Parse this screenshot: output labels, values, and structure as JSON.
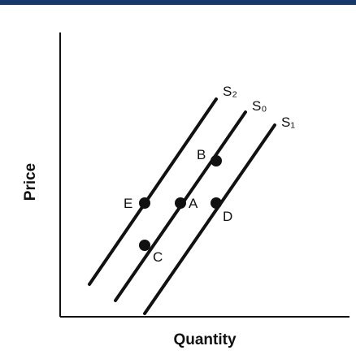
{
  "top_bar_color": "#16386a",
  "chart_data": {
    "type": "line",
    "xlabel": "Quantity",
    "ylabel": "Price",
    "series": [
      {
        "name": "S₂",
        "points": [
          [
            0.9,
            1.0
          ],
          [
            4.8,
            6.7
          ]
        ]
      },
      {
        "name": "S₀",
        "points": [
          [
            1.7,
            0.5
          ],
          [
            5.7,
            6.3
          ]
        ]
      },
      {
        "name": "S₁",
        "points": [
          [
            2.6,
            0.1
          ],
          [
            6.6,
            5.9
          ]
        ]
      }
    ],
    "labeled_points": [
      {
        "label": "E",
        "x": 2.6,
        "y": 3.5
      },
      {
        "label": "A",
        "x": 3.7,
        "y": 3.5
      },
      {
        "label": "D",
        "x": 4.8,
        "y": 3.5
      },
      {
        "label": "B",
        "x": 4.8,
        "y": 4.8
      },
      {
        "label": "C",
        "x": 2.6,
        "y": 2.2
      }
    ],
    "xlim": [
      0,
      8.0
    ],
    "ylim": [
      0,
      8.0
    ],
    "grid": false
  }
}
